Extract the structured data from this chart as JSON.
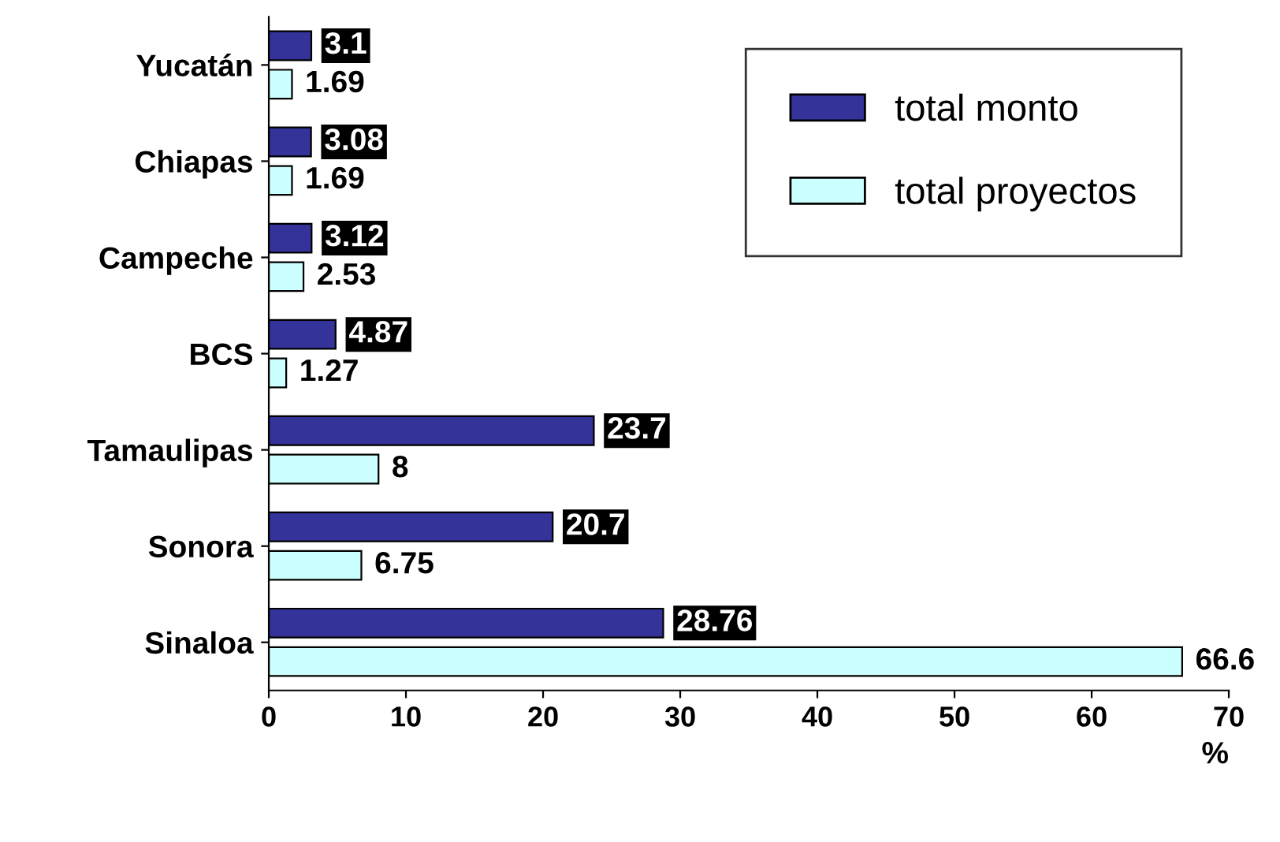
{
  "chart_data": {
    "type": "bar",
    "orientation": "horizontal",
    "xlabel": "%",
    "categories": [
      "Yucatán",
      "Chiapas",
      "Campeche",
      "BCS",
      "Tamaulipas",
      "Sonora",
      "Sinaloa"
    ],
    "series": [
      {
        "name": "total monto",
        "color": "#333399",
        "values": [
          3.1,
          3.08,
          3.12,
          4.87,
          23.7,
          20.7,
          28.76
        ]
      },
      {
        "name": "total proyectos",
        "color": "#ccffff",
        "values": [
          1.69,
          1.69,
          2.53,
          1.27,
          8,
          6.75,
          66.6
        ]
      }
    ],
    "xlim": [
      0,
      70
    ],
    "xticks": [
      0,
      10,
      20,
      30,
      40,
      50,
      60,
      70
    ],
    "data_labels": true,
    "legend": "top right",
    "grid": false
  }
}
